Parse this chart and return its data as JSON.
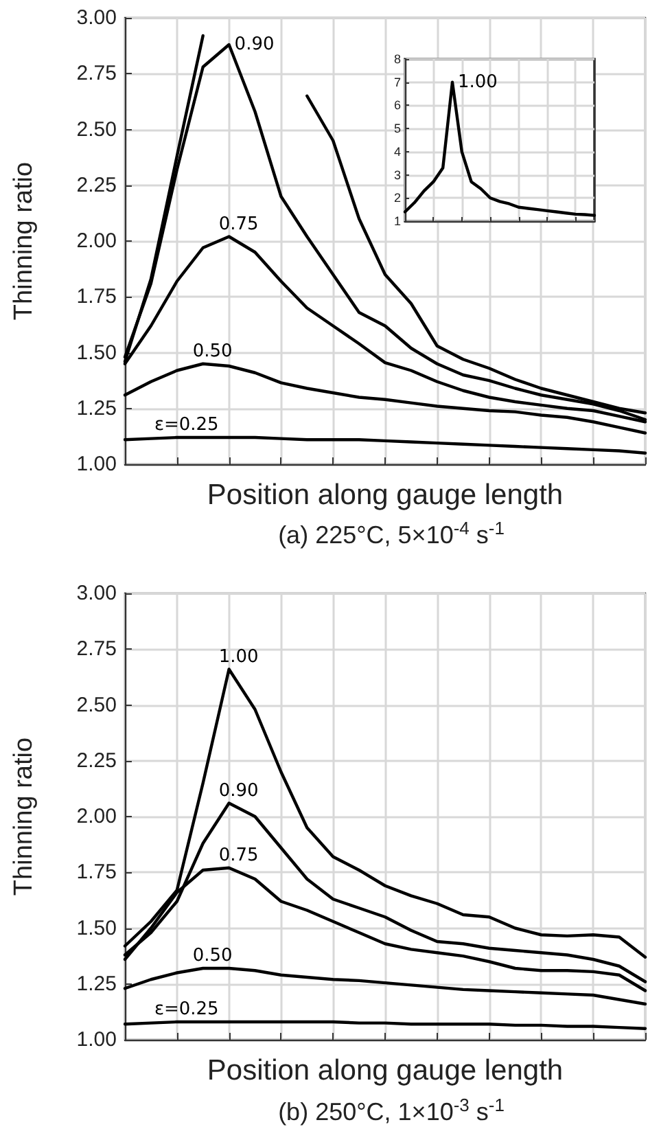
{
  "chart_data": [
    {
      "type": "line",
      "title": "(a) 225°C, 5×10$^{-4}$ s$^{-1}$",
      "xlabel": "Position along gauge length",
      "ylabel": "Thinning ratio",
      "grid": true,
      "categories": [
        null,
        null,
        null,
        null,
        null,
        null,
        null,
        null,
        null,
        null,
        null,
        null,
        null,
        null,
        null,
        null,
        null,
        null,
        null,
        null,
        null
      ],
      "ylim": [
        1,
        3
      ],
      "yticks": [
        {
          "value": 1,
          "label": "1.00"
        },
        {
          "value": 1.25,
          "label": "1.25"
        },
        {
          "value": 1.5,
          "label": "1.50"
        },
        {
          "value": 1.75,
          "label": "1.75"
        },
        {
          "value": 2,
          "label": "2.00"
        },
        {
          "value": 2.25,
          "label": "2.25"
        },
        {
          "value": 2.5,
          "label": "2.50"
        },
        {
          "value": 2.75,
          "label": "2.75"
        },
        {
          "value": 3,
          "label": "3.00"
        }
      ],
      "series": [
        {
          "name": "ε=0.25",
          "color": "#000000",
          "values": [
            1.11,
            1.115,
            1.12,
            1.12,
            1.12,
            1.12,
            1.115,
            1.11,
            1.11,
            1.11,
            1.105,
            1.1,
            1.095,
            1.09,
            1.085,
            1.08,
            1.075,
            1.07,
            1.065,
            1.06,
            1.05
          ]
        },
        {
          "name": "0.50",
          "color": "#000000",
          "values": [
            1.31,
            1.37,
            1.42,
            1.45,
            1.44,
            1.41,
            1.365,
            1.34,
            1.32,
            1.3,
            1.29,
            1.275,
            1.26,
            1.25,
            1.24,
            1.235,
            1.22,
            1.21,
            1.19,
            1.165,
            1.14
          ]
        },
        {
          "name": "0.75",
          "color": "#000000",
          "values": [
            1.45,
            1.62,
            1.82,
            1.97,
            2.02,
            1.95,
            1.82,
            1.7,
            1.62,
            1.54,
            1.455,
            1.42,
            1.37,
            1.33,
            1.3,
            1.28,
            1.265,
            1.25,
            1.24,
            1.215,
            1.19
          ]
        },
        {
          "name": "0.90",
          "color": "#000000",
          "values": [
            1.48,
            1.81,
            2.32,
            2.78,
            2.88,
            2.58,
            2.2,
            2.02,
            1.85,
            1.68,
            1.62,
            1.52,
            1.45,
            1.4,
            1.375,
            1.34,
            1.31,
            1.29,
            1.27,
            1.24,
            1.2
          ]
        },
        {
          "color": "#000000",
          "values": [
            1.46,
            1.83,
            2.38,
            2.92,
            null,
            null,
            null,
            2.65,
            2.45,
            2.1,
            1.85,
            1.72,
            1.53,
            1.47,
            1.43,
            1.38,
            1.34,
            1.31,
            1.28,
            1.25,
            1.23
          ]
        }
      ]
    },
    {
      "type": "line",
      "grid": true,
      "categories": [
        null,
        null,
        null,
        null,
        null,
        null,
        null,
        null,
        null,
        null,
        null,
        null,
        null,
        null,
        null,
        null,
        null,
        null,
        null,
        null,
        null
      ],
      "ylim": [
        1,
        8
      ],
      "yticks": [
        1,
        2,
        3,
        4,
        5,
        6,
        7,
        8
      ],
      "series": [
        {
          "name": "1.00",
          "color": "#000000",
          "values": [
            1.4,
            1.8,
            2.3,
            2.7,
            3.3,
            7.0,
            4.0,
            2.7,
            2.4,
            2.0,
            1.85,
            1.75,
            1.6,
            1.55,
            1.5,
            1.45,
            1.4,
            1.35,
            1.3,
            1.28,
            1.25
          ]
        }
      ]
    },
    {
      "type": "line",
      "title": "(b) 250°C, 1×10$^{-3}$ s$^{-1}$",
      "xlabel": "Position along gauge length",
      "ylabel": "Thinning ratio",
      "grid": true,
      "categories": [
        null,
        null,
        null,
        null,
        null,
        null,
        null,
        null,
        null,
        null,
        null,
        null,
        null,
        null,
        null,
        null,
        null,
        null,
        null,
        null,
        null
      ],
      "ylim": [
        1,
        3
      ],
      "yticks": [
        {
          "value": 1,
          "label": "1.00"
        },
        {
          "value": 1.25,
          "label": "1.25"
        },
        {
          "value": 1.5,
          "label": "1.50"
        },
        {
          "value": 1.75,
          "label": "1.75"
        },
        {
          "value": 2,
          "label": "2.00"
        },
        {
          "value": 2.25,
          "label": "2.25"
        },
        {
          "value": 2.5,
          "label": "2.50"
        },
        {
          "value": 2.75,
          "label": "2.75"
        },
        {
          "value": 3,
          "label": "3.00"
        }
      ],
      "series": [
        {
          "name": "ε=0.25",
          "color": "#000000",
          "values": [
            1.07,
            1.075,
            1.08,
            1.08,
            1.08,
            1.08,
            1.08,
            1.08,
            1.08,
            1.075,
            1.075,
            1.07,
            1.07,
            1.07,
            1.07,
            1.065,
            1.065,
            1.06,
            1.06,
            1.055,
            1.05
          ]
        },
        {
          "name": "0.50",
          "color": "#000000",
          "values": [
            1.23,
            1.27,
            1.3,
            1.32,
            1.32,
            1.31,
            1.29,
            1.28,
            1.27,
            1.265,
            1.255,
            1.245,
            1.235,
            1.225,
            1.22,
            1.215,
            1.21,
            1.205,
            1.2,
            1.18,
            1.16
          ]
        },
        {
          "name": "0.75",
          "color": "#000000",
          "values": [
            1.36,
            1.5,
            1.66,
            1.76,
            1.77,
            1.72,
            1.62,
            1.58,
            1.53,
            1.48,
            1.43,
            1.405,
            1.39,
            1.375,
            1.35,
            1.32,
            1.31,
            1.31,
            1.305,
            1.29,
            1.22
          ]
        },
        {
          "name": "0.90",
          "color": "#000000",
          "values": [
            1.38,
            1.48,
            1.62,
            1.88,
            2.06,
            2.0,
            1.86,
            1.72,
            1.63,
            1.59,
            1.55,
            1.49,
            1.44,
            1.43,
            1.41,
            1.4,
            1.39,
            1.38,
            1.36,
            1.33,
            1.26
          ]
        },
        {
          "name": "1.00",
          "color": "#000000",
          "values": [
            1.42,
            1.53,
            1.67,
            2.15,
            2.66,
            2.48,
            2.2,
            1.95,
            1.82,
            1.76,
            1.69,
            1.645,
            1.61,
            1.56,
            1.55,
            1.5,
            1.47,
            1.465,
            1.47,
            1.46,
            1.37
          ]
        }
      ]
    }
  ]
}
